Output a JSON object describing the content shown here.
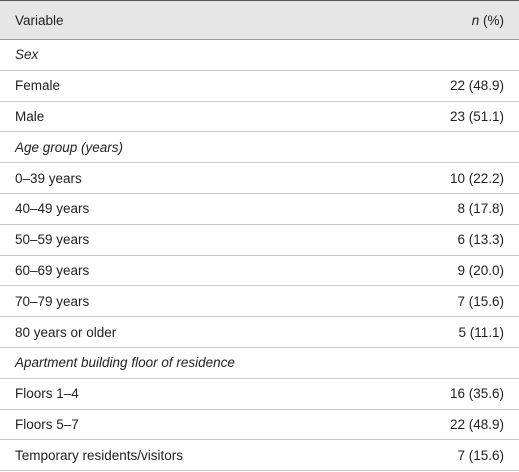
{
  "table": {
    "header": {
      "variable": "Variable",
      "n_label": "n",
      "pct_label": "(%)"
    },
    "rows": [
      {
        "section": "Sex"
      },
      {
        "label": "Female",
        "value": "22 (48.9)"
      },
      {
        "label": "Male",
        "value": "23 (51.1)"
      },
      {
        "section": "Age group (years)"
      },
      {
        "label": "0–39 years",
        "value": "10 (22.2)"
      },
      {
        "label": "40–49 years",
        "value": "8 (17.8)"
      },
      {
        "label": "50–59 years",
        "value": "6 (13.3)"
      },
      {
        "label": "60–69 years",
        "value": "9 (20.0)"
      },
      {
        "label": "70–79 years",
        "value": "7 (15.6)"
      },
      {
        "label": "80 years or older",
        "value": "5 (11.1)"
      },
      {
        "section": "Apartment building floor of residence"
      },
      {
        "label": "Floors 1–4",
        "value": "16 (35.6)"
      },
      {
        "label": "Floors 5–7",
        "value": "22 (48.9)"
      },
      {
        "label": "Temporary residents/visitors",
        "value": "7 (15.6)"
      }
    ]
  }
}
